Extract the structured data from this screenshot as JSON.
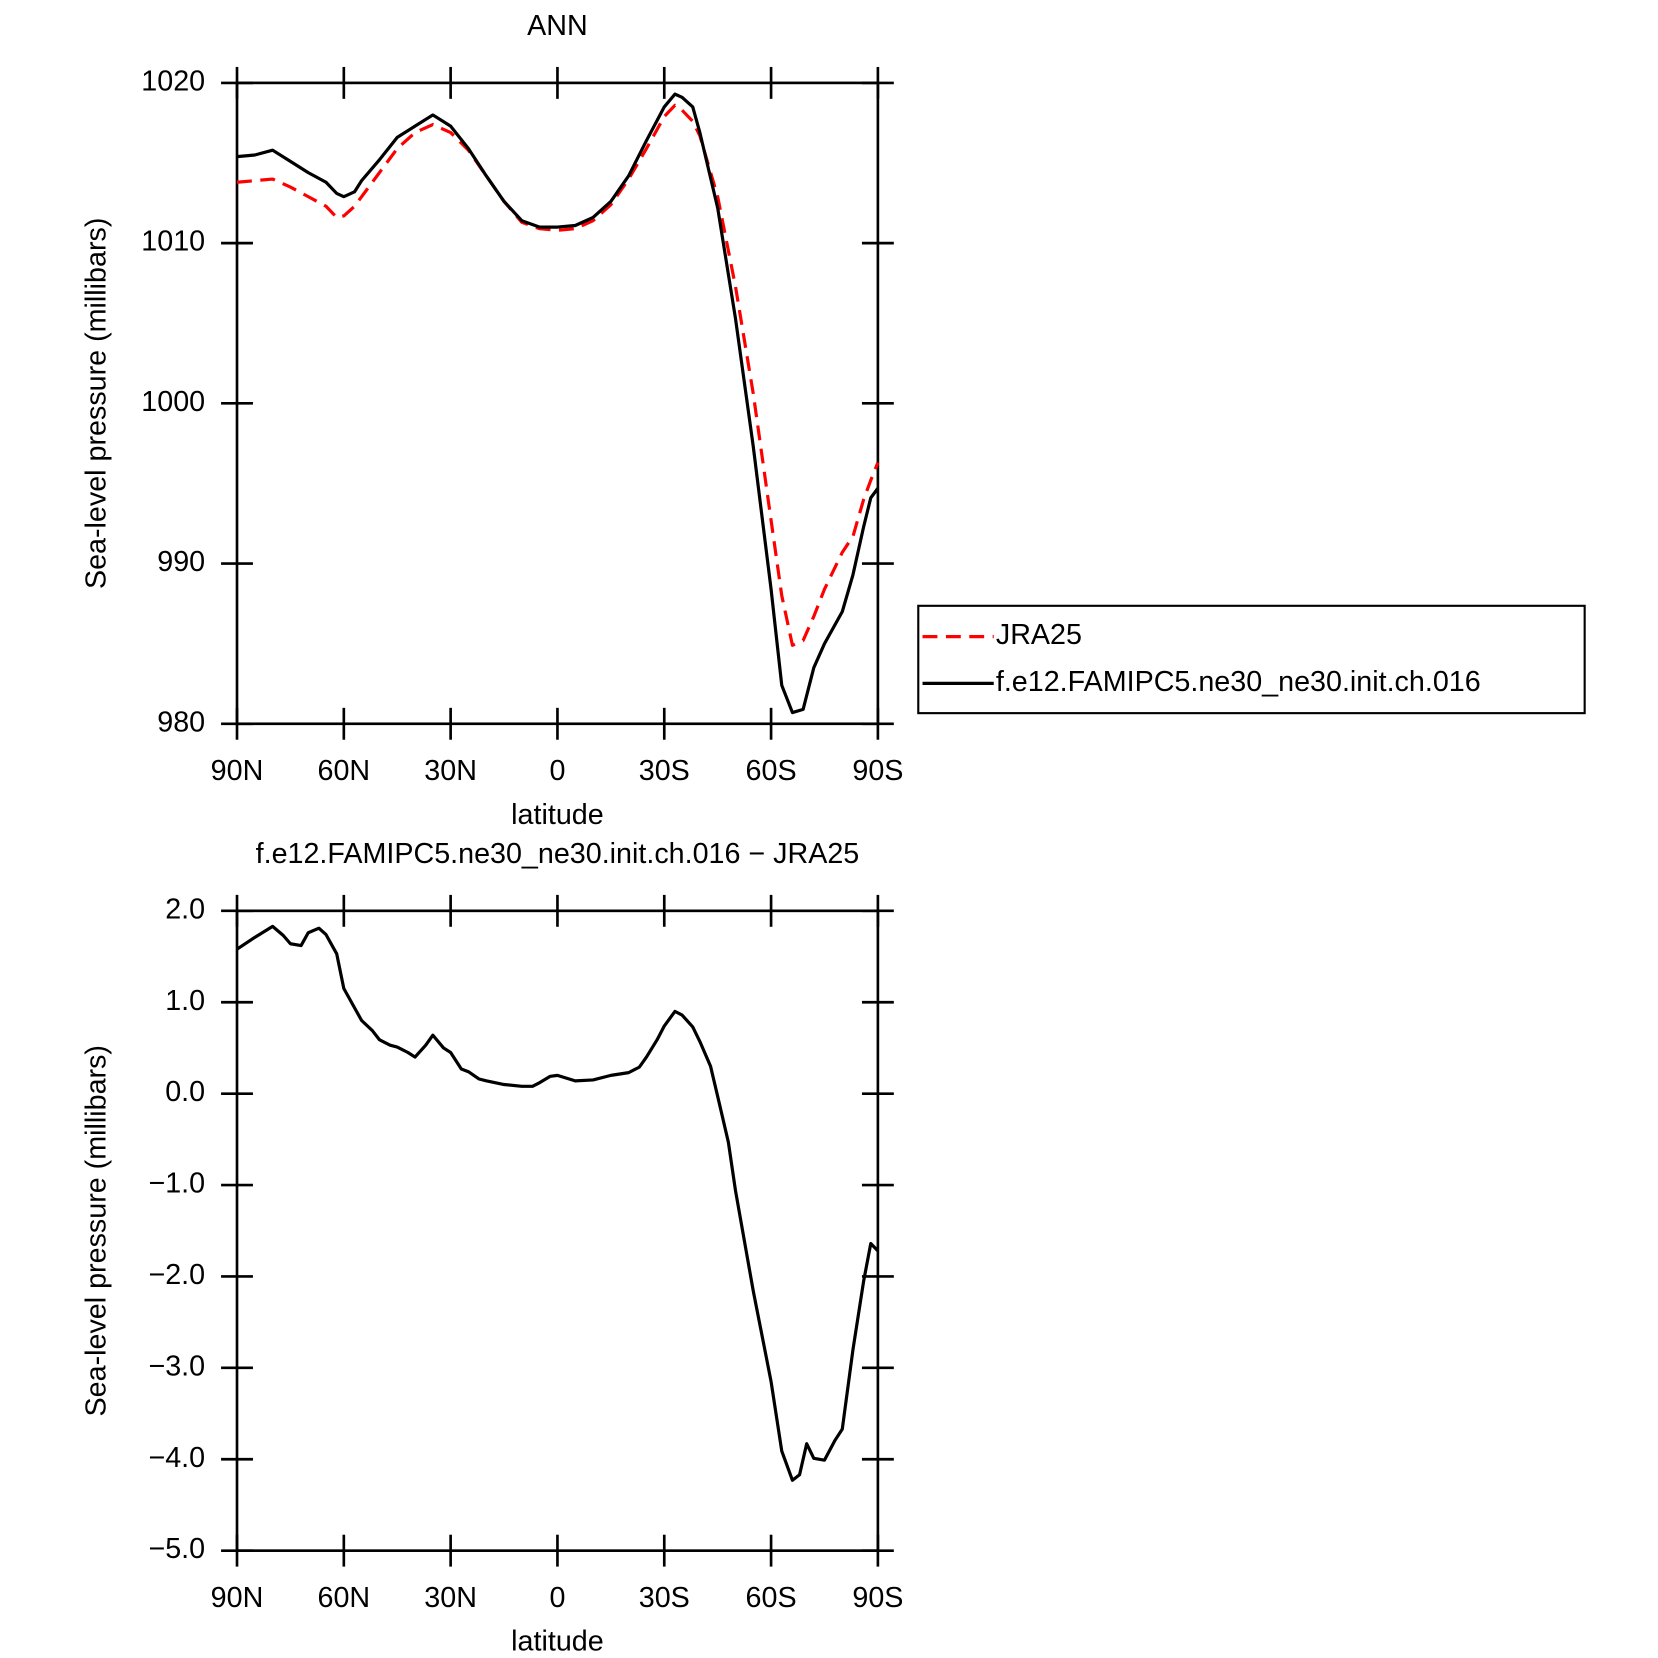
{
  "chart_data": [
    {
      "type": "line",
      "title": "ANN",
      "xlabel": "latitude",
      "ylabel": "Sea-level pressure (millibars)",
      "x": [
        90,
        85,
        80,
        75,
        70,
        65,
        62,
        60,
        57,
        55,
        50,
        45,
        40,
        35,
        30,
        25,
        20,
        15,
        10,
        5,
        0,
        -5,
        -10,
        -15,
        -20,
        -25,
        -30,
        -33,
        -35,
        -38,
        -40,
        -45,
        -50,
        -55,
        -60,
        -63,
        -66,
        -69,
        -72,
        -75,
        -80,
        -83,
        -86,
        -88,
        -90
      ],
      "xlim": [
        90,
        -90
      ],
      "xticks": [
        {
          "value": 90,
          "label": "90N"
        },
        {
          "value": 60,
          "label": "60N"
        },
        {
          "value": 30,
          "label": "30N"
        },
        0,
        {
          "value": -30,
          "label": "30S"
        },
        {
          "value": -60,
          "label": "60S"
        },
        {
          "value": -90,
          "label": "90S"
        }
      ],
      "ylim": [
        980,
        1020
      ],
      "yticks": [
        980,
        990,
        1000,
        1010,
        1020
      ],
      "legend": "outside-right",
      "series": [
        {
          "name": "JRA25",
          "color": "#ff0000",
          "style": "dashed",
          "values": [
            1013.8,
            1013.9,
            1014.0,
            1013.5,
            1012.9,
            1012.3,
            1011.6,
            1011.7,
            1012.3,
            1012.9,
            1014.4,
            1015.9,
            1016.9,
            1017.4,
            1016.9,
            1015.8,
            1014.2,
            1012.6,
            1011.3,
            1010.9,
            1010.8,
            1010.9,
            1011.4,
            1012.4,
            1014.0,
            1015.9,
            1017.9,
            1018.6,
            1018.3,
            1017.6,
            1016.7,
            1012.9,
            1007.3,
            1000.6,
            992.7,
            988.0,
            984.9,
            985.2,
            986.7,
            988.4,
            990.7,
            991.7,
            994.0,
            995.2,
            996.3
          ]
        },
        {
          "name": "f.e12.FAMIPC5.ne30_ne30.init.ch.016",
          "color": "#000000",
          "style": "solid",
          "values": [
            1015.4,
            1015.5,
            1015.8,
            1015.1,
            1014.4,
            1013.8,
            1013.1,
            1012.9,
            1013.2,
            1013.9,
            1015.2,
            1016.6,
            1017.3,
            1018.0,
            1017.3,
            1015.9,
            1014.2,
            1012.6,
            1011.4,
            1011.0,
            1011.0,
            1011.1,
            1011.6,
            1012.6,
            1014.2,
            1016.4,
            1018.5,
            1019.3,
            1019.1,
            1018.5,
            1016.9,
            1012.2,
            1005.3,
            997.3,
            988.4,
            982.4,
            980.7,
            980.9,
            983.5,
            985.0,
            987.0,
            989.3,
            992.3,
            994.1,
            994.7
          ]
        }
      ]
    },
    {
      "type": "line",
      "title": "f.e12.FAMIPC5.ne30_ne30.init.ch.016 − JRA25",
      "xlabel": "latitude",
      "ylabel": "Sea-level pressure (millibars)",
      "x": [
        90,
        85,
        80,
        77,
        75,
        72,
        70,
        67,
        65,
        62,
        60,
        57,
        55,
        52,
        50,
        47,
        45,
        42,
        40,
        37,
        35,
        32,
        30,
        27,
        25,
        22,
        20,
        15,
        10,
        7,
        5,
        2,
        0,
        -5,
        -10,
        -15,
        -20,
        -23,
        -25,
        -28,
        -30,
        -33,
        -35,
        -38,
        -40,
        -43,
        -45,
        -48,
        -50,
        -55,
        -60,
        -63,
        -66,
        -68,
        -70,
        -72,
        -75,
        -78,
        -80,
        -83,
        -86,
        -88,
        -90
      ],
      "xlim": [
        90,
        -90
      ],
      "xticks": [
        {
          "value": 90,
          "label": "90N"
        },
        {
          "value": 60,
          "label": "60N"
        },
        {
          "value": 30,
          "label": "30N"
        },
        0,
        {
          "value": -30,
          "label": "30S"
        },
        {
          "value": -60,
          "label": "60S"
        },
        {
          "value": -90,
          "label": "90S"
        }
      ],
      "ylim": [
        -5,
        2
      ],
      "yticks": [
        {
          "value": -5,
          "label": "−5.0"
        },
        {
          "value": -4,
          "label": "−4.0"
        },
        {
          "value": -3,
          "label": "−3.0"
        },
        {
          "value": -2,
          "label": "−2.0"
        },
        {
          "value": -1,
          "label": "−1.0"
        },
        {
          "value": 0,
          "label": "0.0"
        },
        {
          "value": 1,
          "label": "1.0"
        },
        {
          "value": 2,
          "label": "2.0"
        }
      ],
      "series": [
        {
          "color": "#000000",
          "style": "solid",
          "values": [
            1.58,
            1.71,
            1.83,
            1.73,
            1.64,
            1.62,
            1.76,
            1.81,
            1.74,
            1.53,
            1.15,
            0.94,
            0.8,
            0.69,
            0.59,
            0.53,
            0.51,
            0.45,
            0.4,
            0.53,
            0.64,
            0.5,
            0.45,
            0.27,
            0.24,
            0.16,
            0.14,
            0.1,
            0.08,
            0.08,
            0.12,
            0.19,
            0.2,
            0.14,
            0.15,
            0.2,
            0.23,
            0.29,
            0.4,
            0.59,
            0.74,
            0.9,
            0.86,
            0.73,
            0.57,
            0.3,
            -0.03,
            -0.53,
            -1.06,
            -2.16,
            -3.15,
            -3.91,
            -4.23,
            -4.17,
            -3.83,
            -3.99,
            -4.01,
            -3.79,
            -3.67,
            -2.8,
            -2.05,
            -1.64,
            -1.72
          ]
        }
      ]
    }
  ]
}
